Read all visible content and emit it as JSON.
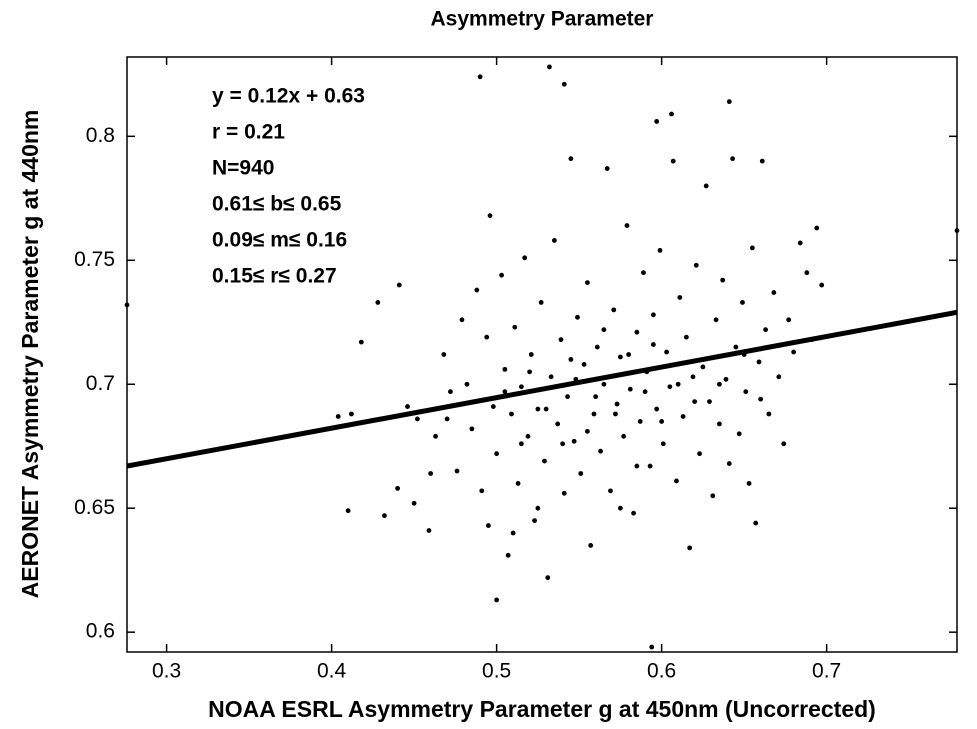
{
  "chart_data": {
    "type": "scatter",
    "title": "Asymmetry Parameter",
    "x_label": "NOAA ESRL Asymmetry Parameter g at 450nm (Uncorrected)",
    "y_label": "AERONET Asymmetry Parameter g at 440nm",
    "annotations": [
      "y = 0.12x + 0.63",
      "r = 0.21",
      "N=940",
      "0.61≤ b≤ 0.65",
      "0.09≤ m≤ 0.16",
      "0.15≤ r≤ 0.27"
    ],
    "color": "#000000",
    "xlim": [
      0.276,
      0.779
    ],
    "ylim": [
      0.592,
      0.832
    ],
    "xticks": [
      0.3,
      0.4,
      0.5,
      0.6,
      0.7
    ],
    "yticks": [
      0.6,
      0.65,
      0.7,
      0.75,
      0.8
    ],
    "fit_line": {
      "x": [
        0.276,
        0.779
      ],
      "y": [
        0.667,
        0.729
      ]
    },
    "x": [
      0.276,
      0.779,
      0.49,
      0.532,
      0.541,
      0.641,
      0.606,
      0.597,
      0.594,
      0.5,
      0.41,
      0.432,
      0.404,
      0.412,
      0.418,
      0.428,
      0.441,
      0.446,
      0.452,
      0.459,
      0.463,
      0.468,
      0.472,
      0.476,
      0.479,
      0.482,
      0.485,
      0.488,
      0.491,
      0.494,
      0.496,
      0.498,
      0.5,
      0.503,
      0.505,
      0.507,
      0.509,
      0.511,
      0.513,
      0.515,
      0.517,
      0.519,
      0.521,
      0.523,
      0.525,
      0.527,
      0.529,
      0.531,
      0.533,
      0.535,
      0.537,
      0.539,
      0.541,
      0.543,
      0.545,
      0.547,
      0.549,
      0.551,
      0.553,
      0.555,
      0.557,
      0.559,
      0.561,
      0.563,
      0.565,
      0.567,
      0.569,
      0.571,
      0.573,
      0.575,
      0.577,
      0.579,
      0.581,
      0.583,
      0.585,
      0.587,
      0.589,
      0.591,
      0.593,
      0.595,
      0.597,
      0.599,
      0.601,
      0.603,
      0.605,
      0.607,
      0.609,
      0.611,
      0.613,
      0.615,
      0.617,
      0.619,
      0.621,
      0.623,
      0.625,
      0.627,
      0.629,
      0.631,
      0.633,
      0.635,
      0.637,
      0.639,
      0.641,
      0.643,
      0.645,
      0.647,
      0.649,
      0.651,
      0.653,
      0.655,
      0.657,
      0.659,
      0.661,
      0.663,
      0.665,
      0.668,
      0.671,
      0.674,
      0.677,
      0.68,
      0.684,
      0.688,
      0.691,
      0.694,
      0.697,
      0.56,
      0.548,
      0.572,
      0.59,
      0.61,
      0.53,
      0.52,
      0.54,
      0.58,
      0.6,
      0.62,
      0.555,
      0.565,
      0.585,
      0.545,
      0.595,
      0.515,
      0.505,
      0.625,
      0.635,
      0.65,
      0.66,
      0.47,
      0.46,
      0.45,
      0.44,
      0.495,
      0.51,
      0.525,
      0.575
    ],
    "values": [
      0.732,
      0.762,
      0.824,
      0.828,
      0.821,
      0.814,
      0.809,
      0.806,
      0.594,
      0.613,
      0.649,
      0.647,
      0.687,
      0.688,
      0.717,
      0.733,
      0.74,
      0.691,
      0.686,
      0.641,
      0.679,
      0.712,
      0.697,
      0.665,
      0.726,
      0.7,
      0.682,
      0.738,
      0.657,
      0.719,
      0.768,
      0.691,
      0.672,
      0.744,
      0.706,
      0.631,
      0.688,
      0.723,
      0.66,
      0.699,
      0.751,
      0.679,
      0.712,
      0.645,
      0.69,
      0.733,
      0.669,
      0.622,
      0.703,
      0.758,
      0.684,
      0.718,
      0.656,
      0.695,
      0.791,
      0.677,
      0.727,
      0.664,
      0.708,
      0.741,
      0.635,
      0.688,
      0.715,
      0.673,
      0.7,
      0.787,
      0.657,
      0.73,
      0.692,
      0.711,
      0.679,
      0.764,
      0.698,
      0.648,
      0.721,
      0.685,
      0.745,
      0.705,
      0.667,
      0.728,
      0.69,
      0.754,
      0.676,
      0.713,
      0.699,
      0.79,
      0.661,
      0.735,
      0.687,
      0.719,
      0.634,
      0.703,
      0.748,
      0.672,
      0.71,
      0.78,
      0.693,
      0.655,
      0.726,
      0.684,
      0.742,
      0.702,
      0.668,
      0.791,
      0.715,
      0.68,
      0.733,
      0.697,
      0.66,
      0.755,
      0.644,
      0.709,
      0.79,
      0.722,
      0.688,
      0.737,
      0.703,
      0.676,
      0.726,
      0.713,
      0.757,
      0.745,
      0.718,
      0.763,
      0.74,
      0.695,
      0.702,
      0.688,
      0.697,
      0.7,
      0.69,
      0.705,
      0.676,
      0.712,
      0.685,
      0.693,
      0.681,
      0.722,
      0.667,
      0.71,
      0.716,
      0.676,
      0.697,
      0.707,
      0.7,
      0.712,
      0.694,
      0.686,
      0.664,
      0.652,
      0.658,
      0.643,
      0.64,
      0.65,
      0.65
    ]
  }
}
